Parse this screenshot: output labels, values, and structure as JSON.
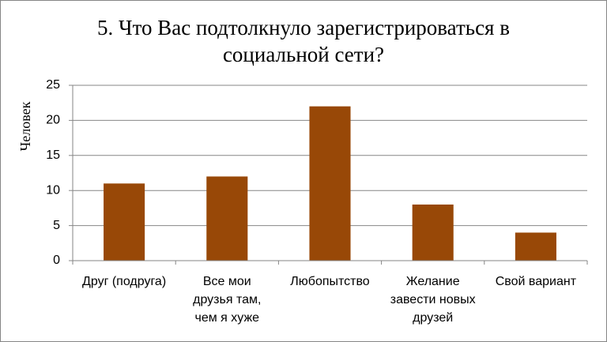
{
  "chart_data": {
    "type": "bar",
    "title": "5. Что Вас подтолкнуло зарегистрироваться в социальной сети?",
    "y_label": "Человек",
    "categories": [
      "Друг (подруга)",
      "Все мои друзья там, чем я хуже",
      "Любопытство",
      "Желание завести новых друзей",
      "Свой вариант"
    ],
    "values": [
      11,
      12,
      22,
      8,
      4
    ],
    "color": "#984807",
    "ylim": [
      0,
      25
    ],
    "yticks": [
      0,
      5,
      10,
      15,
      20,
      25
    ],
    "grid": true
  }
}
